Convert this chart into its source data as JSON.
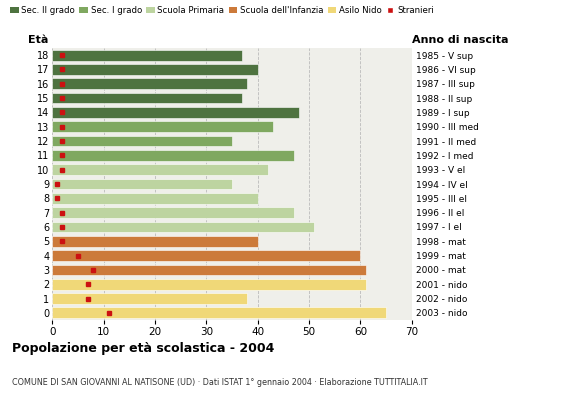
{
  "ages": [
    18,
    17,
    16,
    15,
    14,
    13,
    12,
    11,
    10,
    9,
    8,
    7,
    6,
    5,
    4,
    3,
    2,
    1,
    0
  ],
  "years": [
    "1985 - V sup",
    "1986 - VI sup",
    "1987 - III sup",
    "1988 - II sup",
    "1989 - I sup",
    "1990 - III med",
    "1991 - II med",
    "1992 - I med",
    "1993 - V el",
    "1994 - IV el",
    "1995 - III el",
    "1996 - II el",
    "1997 - I el",
    "1998 - mat",
    "1999 - mat",
    "2000 - mat",
    "2001 - nido",
    "2002 - nido",
    "2003 - nido"
  ],
  "bar_values": [
    37,
    40,
    38,
    37,
    48,
    43,
    35,
    47,
    42,
    35,
    40,
    47,
    51,
    40,
    60,
    61,
    61,
    38,
    65
  ],
  "bar_colors": [
    "#4e7340",
    "#4e7340",
    "#4e7340",
    "#4e7340",
    "#4e7340",
    "#7fa860",
    "#7fa860",
    "#7fa860",
    "#bdd4a0",
    "#bdd4a0",
    "#bdd4a0",
    "#bdd4a0",
    "#bdd4a0",
    "#cc7a3a",
    "#cc7a3a",
    "#cc7a3a",
    "#f0d878",
    "#f0d878",
    "#f0d878"
  ],
  "stranieri_values": [
    2,
    2,
    2,
    2,
    2,
    2,
    2,
    2,
    2,
    1,
    1,
    2,
    2,
    2,
    5,
    8,
    7,
    7,
    11
  ],
  "stranieri_color": "#cc1111",
  "legend_labels": [
    "Sec. II grado",
    "Sec. I grado",
    "Scuola Primaria",
    "Scuola dell'Infanzia",
    "Asilo Nido",
    "Stranieri"
  ],
  "legend_colors": [
    "#4e7340",
    "#7fa860",
    "#bdd4a0",
    "#cc7a3a",
    "#f0d878",
    "#cc1111"
  ],
  "title": "Popolazione per età scolastica - 2004",
  "subtitle": "COMUNE DI SAN GIOVANNI AL NATISONE (UD) · Dati ISTAT 1° gennaio 2004 · Elaborazione TUTTITALIA.IT",
  "xlabel_eta": "Età",
  "xlabel_anno": "Anno di nascita",
  "xlim": [
    0,
    70
  ],
  "xticks": [
    0,
    10,
    20,
    30,
    40,
    50,
    60,
    70
  ],
  "bar_height": 0.75,
  "background_color": "#ffffff",
  "plot_bg_color": "#efefea",
  "grid_color": "#bbbbbb"
}
